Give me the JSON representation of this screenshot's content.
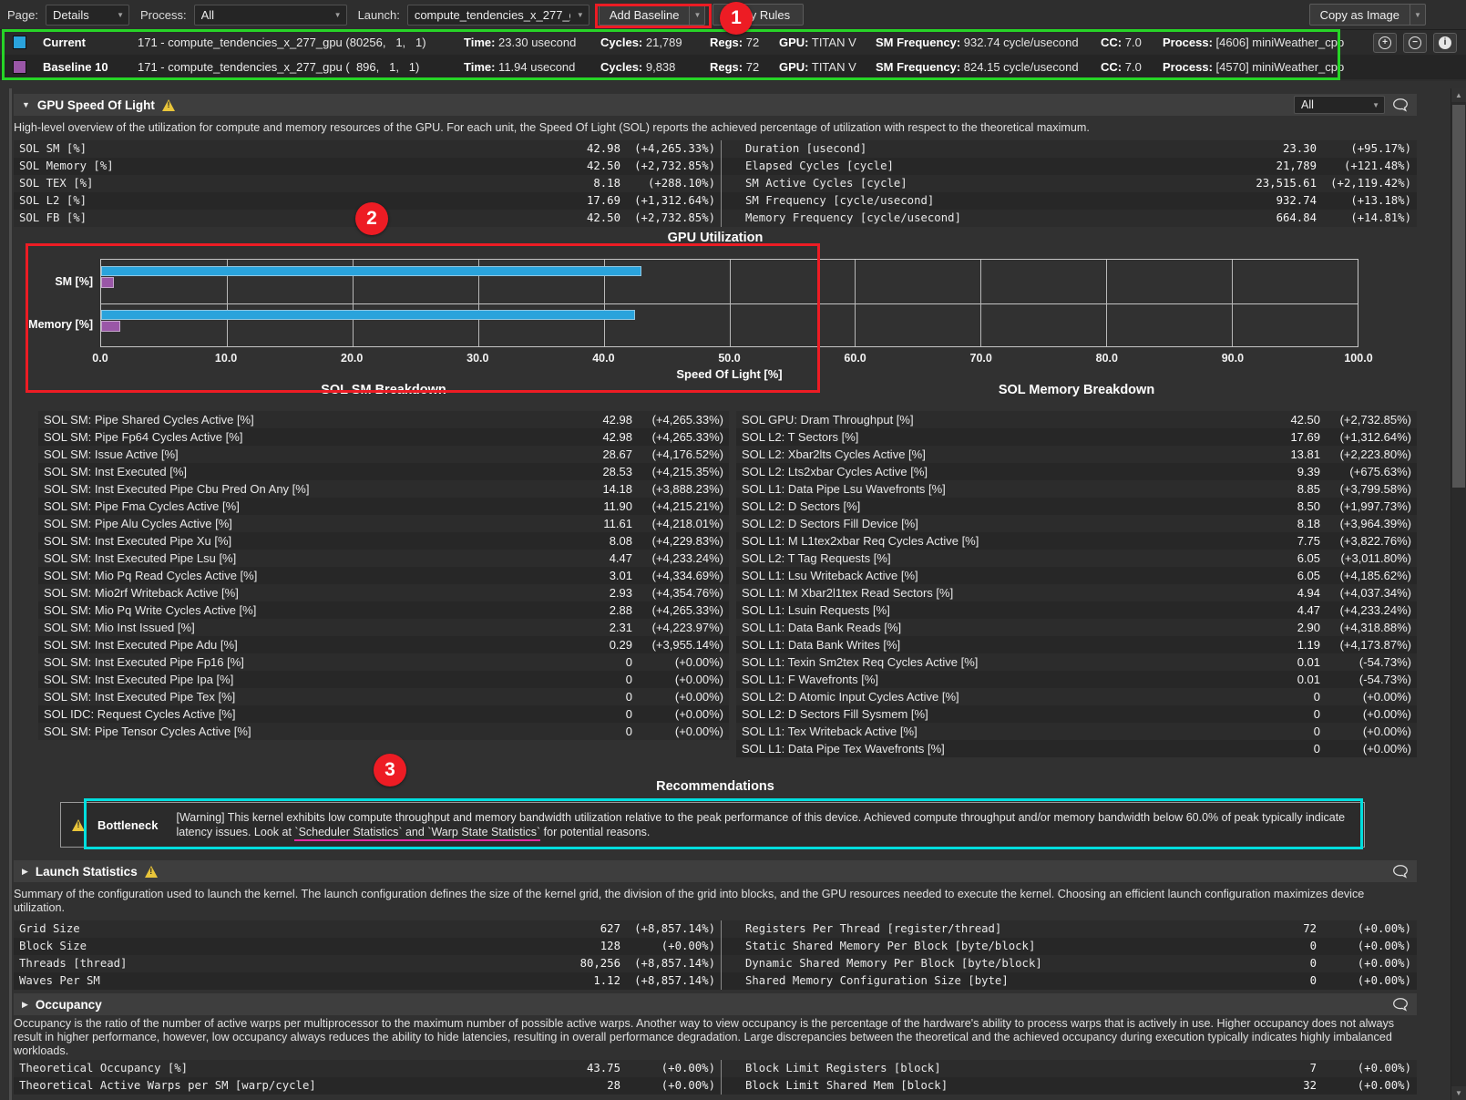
{
  "colors": {
    "current_blue": "#2aa3dc",
    "baseline_purple": "#9a57a7",
    "annotation_red": "#ed1c24",
    "annotation_green": "#27d427",
    "annotation_cyan": "#00dede",
    "underline_magenta": "#e32ba0",
    "warning_yellow": "#e9c53a"
  },
  "toolbar": {
    "page_label": "Page:",
    "page_value": "Details",
    "process_label": "Process:",
    "process_value": "All",
    "launch_label": "Launch:",
    "launch_value": "compute_tendencies_x_277_gpu",
    "add_baseline_label": "Add Baseline",
    "apply_rules_label": "Apply Rules",
    "copy_as_image_label": "Copy as Image"
  },
  "baseline_header": {
    "rows": [
      {
        "name": "Current",
        "swatch": "#2aa3dc",
        "kernel": "171 - compute_tendencies_x_277_gpu (80256,   1,   1)",
        "stats": [
          {
            "label": "Time:",
            "value": "23.30 usecond"
          },
          {
            "label": "Cycles:",
            "value": "21,789"
          },
          {
            "label": "Regs:",
            "value": "72"
          },
          {
            "label": "GPU:",
            "value": "TITAN V"
          },
          {
            "label": "SM Frequency:",
            "value": "932.74 cycle/usecond"
          },
          {
            "label": "CC:",
            "value": "7.0"
          },
          {
            "label": "Process:",
            "value": "[4606] miniWeather_cpp"
          }
        ]
      },
      {
        "name": "Baseline 10",
        "swatch": "#9a57a7",
        "kernel": "171 - compute_tendencies_x_277_gpu (  896,   1,   1)",
        "stats": [
          {
            "label": "Time:",
            "value": "11.94 usecond"
          },
          {
            "label": "Cycles:",
            "value": "9,838"
          },
          {
            "label": "Regs:",
            "value": "72"
          },
          {
            "label": "GPU:",
            "value": "TITAN V"
          },
          {
            "label": "SM Frequency:",
            "value": "824.15 cycle/usecond"
          },
          {
            "label": "CC:",
            "value": "7.0"
          },
          {
            "label": "Process:",
            "value": "[4570] miniWeather_cpp"
          }
        ]
      }
    ]
  },
  "sol": {
    "title": "GPU Speed Of Light",
    "filter_value": "All",
    "description": "High-level overview of the utilization for compute and memory resources of the GPU. For each unit, the Speed Of Light (SOL) reports the achieved percentage of utilization with respect to the theoretical maximum.",
    "left_rows": [
      {
        "label": "SOL SM [%]",
        "value": "42.98",
        "delta": "(+4,265.33%)"
      },
      {
        "label": "SOL Memory [%]",
        "value": "42.50",
        "delta": "(+2,732.85%)"
      },
      {
        "label": "SOL TEX [%]",
        "value": "8.18",
        "delta": "(+288.10%)"
      },
      {
        "label": "SOL L2 [%]",
        "value": "17.69",
        "delta": "(+1,312.64%)"
      },
      {
        "label": "SOL FB [%]",
        "value": "42.50",
        "delta": "(+2,732.85%)"
      }
    ],
    "right_rows": [
      {
        "label": "Duration [usecond]",
        "value": "23.30",
        "delta": "(+95.17%)"
      },
      {
        "label": "Elapsed Cycles [cycle]",
        "value": "21,789",
        "delta": "(+121.48%)"
      },
      {
        "label": "SM Active Cycles [cycle]",
        "value": "23,515.61",
        "delta": "(+2,119.42%)"
      },
      {
        "label": "SM Frequency [cycle/usecond]",
        "value": "932.74",
        "delta": "(+13.18%)"
      },
      {
        "label": "Memory Frequency [cycle/usecond]",
        "value": "664.84",
        "delta": "(+14.81%)"
      }
    ]
  },
  "chart_data": {
    "type": "bar",
    "orientation": "horizontal",
    "title": "GPU Utilization",
    "xlabel": "Speed Of Light [%]",
    "categories": [
      "SM [%]",
      "Memory [%]"
    ],
    "series": [
      {
        "name": "Current",
        "color": "#2aa3dc",
        "values": [
          42.98,
          42.5
        ]
      },
      {
        "name": "Baseline 10",
        "color": "#9a57a7",
        "values": [
          0.98,
          1.5
        ]
      }
    ],
    "xlim": [
      0,
      100
    ],
    "xticks": [
      0,
      10,
      20,
      30,
      40,
      50,
      60,
      70,
      80,
      90,
      100
    ],
    "grid": true,
    "legend_position": "none"
  },
  "breakdown": {
    "sm_title": "SOL SM Breakdown",
    "memory_title": "SOL Memory Breakdown",
    "sm_rows": [
      {
        "label": "SOL SM: Pipe Shared Cycles Active [%]",
        "value": "42.98",
        "delta": "(+4,265.33%)"
      },
      {
        "label": "SOL SM: Pipe Fp64 Cycles Active [%]",
        "value": "42.98",
        "delta": "(+4,265.33%)"
      },
      {
        "label": "SOL SM: Issue Active [%]",
        "value": "28.67",
        "delta": "(+4,176.52%)"
      },
      {
        "label": "SOL SM: Inst Executed [%]",
        "value": "28.53",
        "delta": "(+4,215.35%)"
      },
      {
        "label": "SOL SM: Inst Executed Pipe Cbu Pred On Any [%]",
        "value": "14.18",
        "delta": "(+3,888.23%)"
      },
      {
        "label": "SOL SM: Pipe Fma Cycles Active [%]",
        "value": "11.90",
        "delta": "(+4,215.21%)"
      },
      {
        "label": "SOL SM: Pipe Alu Cycles Active [%]",
        "value": "11.61",
        "delta": "(+4,218.01%)"
      },
      {
        "label": "SOL SM: Inst Executed Pipe Xu [%]",
        "value": "8.08",
        "delta": "(+4,229.83%)"
      },
      {
        "label": "SOL SM: Inst Executed Pipe Lsu [%]",
        "value": "4.47",
        "delta": "(+4,233.24%)"
      },
      {
        "label": "SOL SM: Mio Pq Read Cycles Active [%]",
        "value": "3.01",
        "delta": "(+4,334.69%)"
      },
      {
        "label": "SOL SM: Mio2rf Writeback Active [%]",
        "value": "2.93",
        "delta": "(+4,354.76%)"
      },
      {
        "label": "SOL SM: Mio Pq Write Cycles Active [%]",
        "value": "2.88",
        "delta": "(+4,265.33%)"
      },
      {
        "label": "SOL SM: Mio Inst Issued [%]",
        "value": "2.31",
        "delta": "(+4,223.97%)"
      },
      {
        "label": "SOL SM: Inst Executed Pipe Adu [%]",
        "value": "0.29",
        "delta": "(+3,955.14%)"
      },
      {
        "label": "SOL SM: Inst Executed Pipe Fp16 [%]",
        "value": "0",
        "delta": "(+0.00%)"
      },
      {
        "label": "SOL SM: Inst Executed Pipe Ipa [%]",
        "value": "0",
        "delta": "(+0.00%)"
      },
      {
        "label": "SOL SM: Inst Executed Pipe Tex [%]",
        "value": "0",
        "delta": "(+0.00%)"
      },
      {
        "label": "SOL IDC: Request Cycles Active [%]",
        "value": "0",
        "delta": "(+0.00%)"
      },
      {
        "label": "SOL SM: Pipe Tensor Cycles Active [%]",
        "value": "0",
        "delta": "(+0.00%)"
      }
    ],
    "memory_rows": [
      {
        "label": "SOL GPU: Dram Throughput [%]",
        "value": "42.50",
        "delta": "(+2,732.85%)"
      },
      {
        "label": "SOL L2: T Sectors [%]",
        "value": "17.69",
        "delta": "(+1,312.64%)"
      },
      {
        "label": "SOL L2: Xbar2lts Cycles Active [%]",
        "value": "13.81",
        "delta": "(+2,223.80%)"
      },
      {
        "label": "SOL L2: Lts2xbar Cycles Active [%]",
        "value": "9.39",
        "delta": "(+675.63%)"
      },
      {
        "label": "SOL L1: Data Pipe Lsu Wavefronts [%]",
        "value": "8.85",
        "delta": "(+3,799.58%)"
      },
      {
        "label": "SOL L2: D Sectors [%]",
        "value": "8.50",
        "delta": "(+1,997.73%)"
      },
      {
        "label": "SOL L2: D Sectors Fill Device [%]",
        "value": "8.18",
        "delta": "(+3,964.39%)"
      },
      {
        "label": "SOL L1: M L1tex2xbar Req Cycles Active [%]",
        "value": "7.75",
        "delta": "(+3,822.76%)"
      },
      {
        "label": "SOL L2: T Tag Requests [%]",
        "value": "6.05",
        "delta": "(+3,011.80%)"
      },
      {
        "label": "SOL L1: Lsu Writeback Active [%]",
        "value": "6.05",
        "delta": "(+4,185.62%)"
      },
      {
        "label": "SOL L1: M Xbar2l1tex Read Sectors [%]",
        "value": "4.94",
        "delta": "(+4,037.34%)"
      },
      {
        "label": "SOL L1: Lsuin Requests [%]",
        "value": "4.47",
        "delta": "(+4,233.24%)"
      },
      {
        "label": "SOL L1: Data Bank Reads [%]",
        "value": "2.90",
        "delta": "(+4,318.88%)"
      },
      {
        "label": "SOL L1: Data Bank Writes [%]",
        "value": "1.19",
        "delta": "(+4,173.87%)"
      },
      {
        "label": "SOL L1: Texin Sm2tex Req Cycles Active [%]",
        "value": "0.01",
        "delta": "(-54.73%)"
      },
      {
        "label": "SOL L1: F Wavefronts [%]",
        "value": "0.01",
        "delta": "(-54.73%)"
      },
      {
        "label": "SOL L2: D Atomic Input Cycles Active [%]",
        "value": "0",
        "delta": "(+0.00%)"
      },
      {
        "label": "SOL L2: D Sectors Fill Sysmem [%]",
        "value": "0",
        "delta": "(+0.00%)"
      },
      {
        "label": "SOL L1: Tex Writeback Active [%]",
        "value": "0",
        "delta": "(+0.00%)"
      },
      {
        "label": "SOL L1: Data Pipe Tex Wavefronts [%]",
        "value": "0",
        "delta": "(+0.00%)"
      }
    ]
  },
  "recommendations": {
    "title": "Recommendations",
    "bottleneck_label": "Bottleneck",
    "text_before": "[Warning] This kernel exhibits low compute throughput and memory bandwidth utilization relative to the peak performance of this device. Achieved compute throughput and/or memory bandwidth below 60.0% of peak typically indicate latency issues. Look at ",
    "text_links": "`Scheduler Statistics` and `Warp State Statistics`",
    "text_after": " for potential reasons."
  },
  "launch_stats": {
    "title": "Launch Statistics",
    "description": "Summary of the configuration used to launch the kernel. The launch configuration defines the size of the kernel grid, the division of the grid into blocks, and the GPU resources needed to execute the kernel. Choosing an efficient launch configuration maximizes device utilization.",
    "left_rows": [
      {
        "label": "Grid Size",
        "value": "627",
        "delta": "(+8,857.14%)"
      },
      {
        "label": "Block Size",
        "value": "128",
        "delta": "(+0.00%)"
      },
      {
        "label": "Threads [thread]",
        "value": "80,256",
        "delta": "(+8,857.14%)"
      },
      {
        "label": "Waves Per SM",
        "value": "1.12",
        "delta": "(+8,857.14%)"
      }
    ],
    "right_rows": [
      {
        "label": "Registers Per Thread [register/thread]",
        "value": "72",
        "delta": "(+0.00%)"
      },
      {
        "label": "Static Shared Memory Per Block [byte/block]",
        "value": "0",
        "delta": "(+0.00%)"
      },
      {
        "label": "Dynamic Shared Memory Per Block [byte/block]",
        "value": "0",
        "delta": "(+0.00%)"
      },
      {
        "label": "Shared Memory Configuration Size [byte]",
        "value": "0",
        "delta": "(+0.00%)"
      }
    ]
  },
  "occupancy": {
    "title": "Occupancy",
    "description": "Occupancy is the ratio of the number of active warps per multiprocessor to the maximum number of possible active warps. Another way to view occupancy is the percentage of the hardware's ability to process warps that is actively in use. Higher occupancy does not always result in higher performance, however, low occupancy always reduces the ability to hide latencies, resulting in overall performance degradation. Large discrepancies between the theoretical and the achieved occupancy during execution typically indicates highly imbalanced workloads.",
    "left_rows": [
      {
        "label": "Theoretical Occupancy [%]",
        "value": "43.75",
        "delta": "(+0.00%)"
      },
      {
        "label": "Theoretical Active Warps per SM [warp/cycle]",
        "value": "28",
        "delta": "(+0.00%)"
      }
    ],
    "right_rows": [
      {
        "label": "Block Limit Registers [block]",
        "value": "7",
        "delta": "(+0.00%)"
      },
      {
        "label": "Block Limit Shared Mem [block]",
        "value": "32",
        "delta": "(+0.00%)"
      }
    ]
  },
  "annotations": {
    "badges": [
      "1",
      "2",
      "3"
    ]
  }
}
